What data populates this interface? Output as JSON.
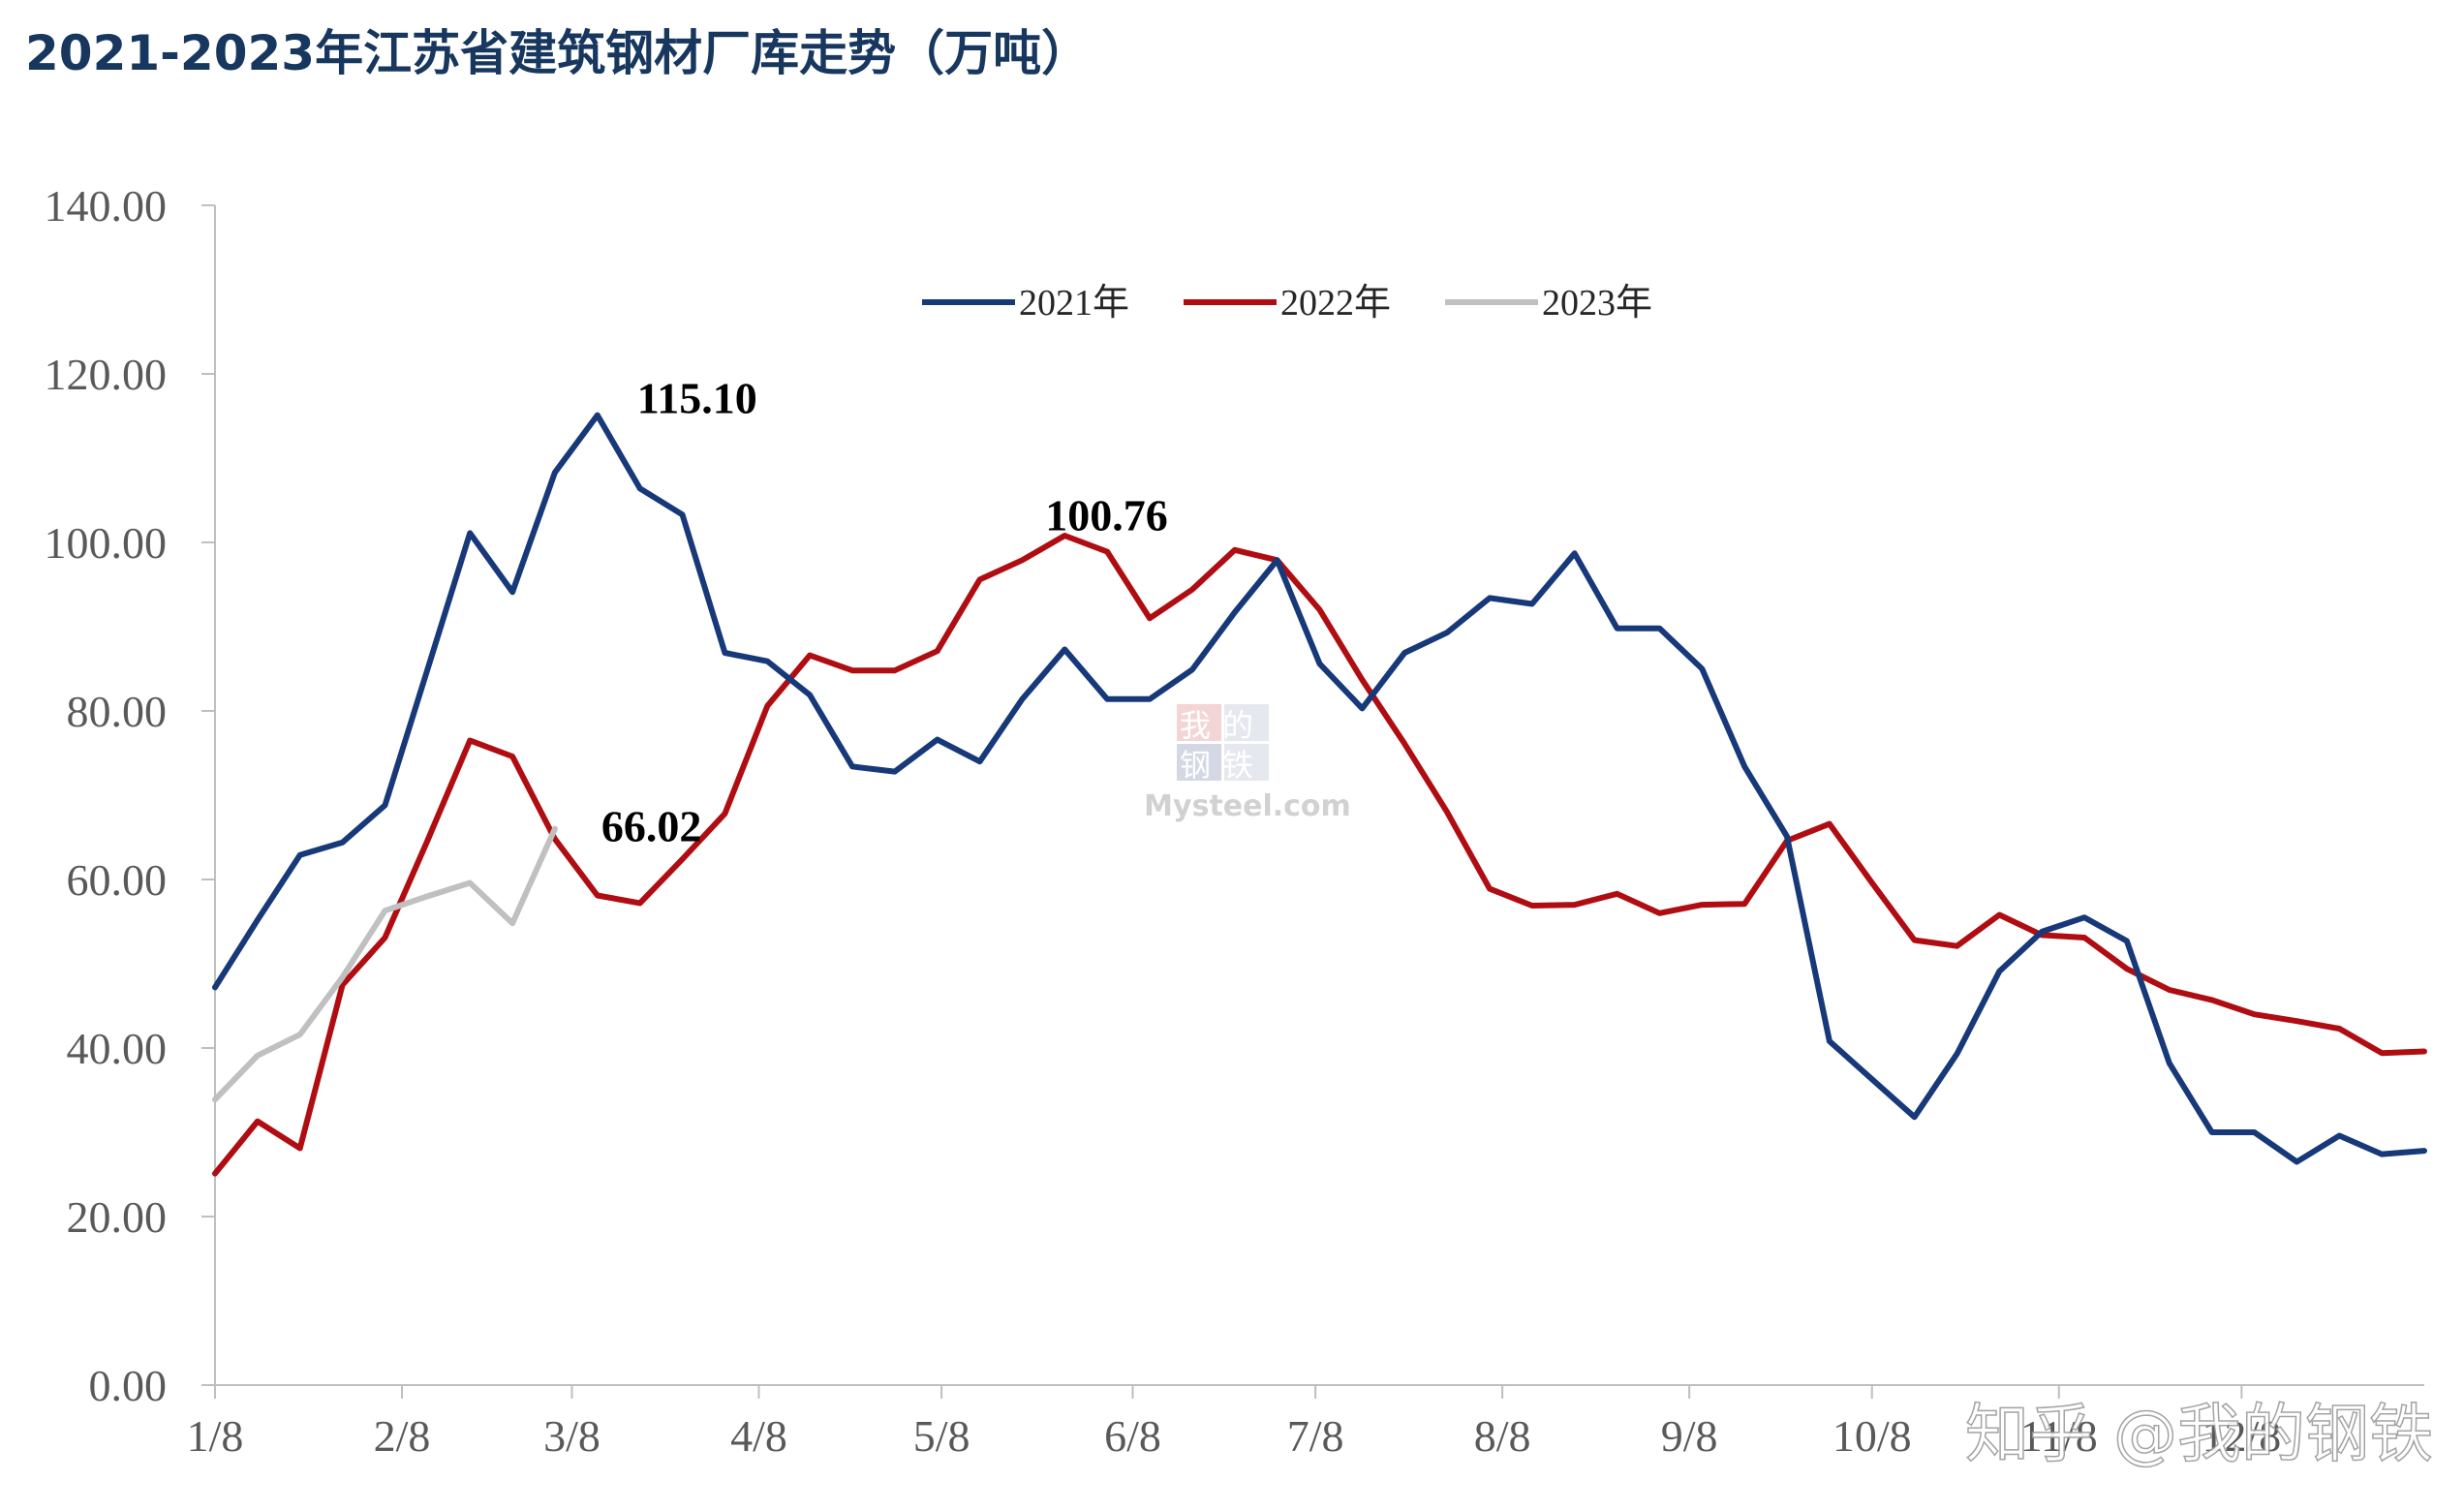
{
  "title": "2021-2023年江苏省建筑钢材厂库走势（万吨）",
  "colors": {
    "title": "#17375e",
    "s2021": "#17397a",
    "s2022": "#b00d12",
    "s2023": "#c0c0c0",
    "axis": "#bfbfbf"
  },
  "chart_data": {
    "type": "line",
    "title": "2021-2023年江苏省建筑钢材厂库走势（万吨）",
    "xlabel": "",
    "ylabel": "",
    "ylim": [
      0,
      140
    ],
    "xlim": [
      0,
      52
    ],
    "y_ticks": [
      "0.00",
      "20.00",
      "40.00",
      "60.00",
      "80.00",
      "100.00",
      "120.00",
      "140.00"
    ],
    "x_ticks": [
      {
        "x": 0,
        "label": "1/8"
      },
      {
        "x": 4.4,
        "label": "2/8"
      },
      {
        "x": 8.4,
        "label": "3/8"
      },
      {
        "x": 12.8,
        "label": "4/8"
      },
      {
        "x": 17.1,
        "label": "5/8"
      },
      {
        "x": 21.6,
        "label": "6/8"
      },
      {
        "x": 25.9,
        "label": "7/8"
      },
      {
        "x": 30.3,
        "label": "8/8"
      },
      {
        "x": 34.7,
        "label": "9/8"
      },
      {
        "x": 39.0,
        "label": "10/8"
      },
      {
        "x": 43.4,
        "label": "11/8"
      },
      {
        "x": 47.7,
        "label": "12/8"
      }
    ],
    "legend_position": "top-center",
    "grid": false,
    "series": [
      {
        "name": "2021年",
        "color": "#17397a",
        "values": [
          47.2,
          55.2,
          62.9,
          64.4,
          68.8,
          84.9,
          101.1,
          94.1,
          108.3,
          115.1,
          106.4,
          103.3,
          86.9,
          85.9,
          81.9,
          73.4,
          72.8,
          76.6,
          74.0,
          81.4,
          87.3,
          81.4,
          81.4,
          84.9,
          91.7,
          97.9,
          85.6,
          80.3,
          86.9,
          89.3,
          93.4,
          92.7,
          98.7,
          89.8,
          89.8,
          85.0,
          73.4,
          65.1,
          40.8,
          36.3,
          31.8,
          39.3,
          49.1,
          53.8,
          55.5,
          52.7,
          38.2,
          30.0,
          30.0,
          26.5,
          29.6,
          27.4,
          27.8
        ]
      },
      {
        "name": "2022年",
        "color": "#b00d12",
        "values": [
          25.1,
          31.3,
          28.1,
          47.5,
          53.1,
          64.6,
          76.5,
          74.6,
          64.8,
          58.1,
          57.2,
          62.4,
          67.8,
          80.6,
          86.6,
          84.8,
          84.8,
          87.1,
          95.6,
          97.9,
          100.8,
          98.9,
          91.0,
          94.4,
          99.1,
          97.9,
          92.0,
          83.7,
          76.1,
          68.0,
          58.9,
          56.9,
          57.0,
          58.3,
          56.0,
          57.0,
          57.1,
          64.6,
          66.6,
          59.6,
          52.8,
          52.1,
          55.8,
          53.4,
          53.1,
          49.4,
          46.9,
          45.7,
          44.0,
          43.2,
          42.3,
          39.4,
          39.6
        ]
      },
      {
        "name": "2023年",
        "color": "#c0c0c0",
        "values": [
          33.9,
          39.1,
          41.6,
          48.4,
          56.3,
          58.0,
          59.6,
          54.8,
          66.02
        ]
      }
    ],
    "annotations": [
      {
        "text": "115.10",
        "series": "2021年",
        "x": 9,
        "value": 115.1
      },
      {
        "text": "100.76",
        "series": "2022年",
        "x": 20,
        "value": 100.76
      },
      {
        "text": "66.02",
        "series": "2023年",
        "x": 8,
        "value": 66.02
      }
    ]
  },
  "watermark": {
    "line1": "我的",
    "line2": "钢铁",
    "site": "Mysteel.com"
  },
  "footer_watermark": "知乎 @我的钢铁"
}
